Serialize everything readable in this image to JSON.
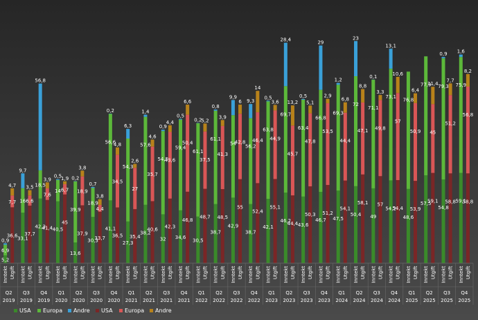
{
  "chart_data": {
    "type": "bar",
    "stacked": true,
    "title": "",
    "xlabel": "",
    "ylabel": "",
    "ylim": [
      0,
      170
    ],
    "grid": false,
    "legend_position": "bottom",
    "quarters": [
      {
        "q": "Q2",
        "y": "2019"
      },
      {
        "q": "Q3",
        "y": "2019"
      },
      {
        "q": "Q4",
        "y": "2019"
      },
      {
        "q": "Q1",
        "y": "2020"
      },
      {
        "q": "Q2",
        "y": "2020"
      },
      {
        "q": "Q3",
        "y": "2020"
      },
      {
        "q": "Q4",
        "y": "2020"
      },
      {
        "q": "Q1",
        "y": "2021"
      },
      {
        "q": "Q2",
        "y": "2021"
      },
      {
        "q": "Q3",
        "y": "2021"
      },
      {
        "q": "Q4",
        "y": "2021"
      },
      {
        "q": "Q1",
        "y": "2022"
      },
      {
        "q": "Q2",
        "y": "2022"
      },
      {
        "q": "Q3",
        "y": "2022"
      },
      {
        "q": "Q4",
        "y": "2022"
      },
      {
        "q": "Q1",
        "y": "2023"
      },
      {
        "q": "Q2",
        "y": "2023"
      },
      {
        "q": "Q3",
        "y": "2023"
      },
      {
        "q": "Q4",
        "y": "2023"
      },
      {
        "q": "Q1",
        "y": "2024"
      },
      {
        "q": "Q2",
        "y": "2024"
      },
      {
        "q": "Q3",
        "y": "2024"
      },
      {
        "q": "Q4",
        "y": "2024"
      },
      {
        "q": "Q1",
        "y": "2025"
      },
      {
        "q": "Q2",
        "y": "2025"
      },
      {
        "q": "Q3",
        "y": "2025"
      },
      {
        "q": "Q4",
        "y": "2025"
      }
    ],
    "sub_categories": [
      "Inntekt",
      "Utgift"
    ],
    "income_series": [
      {
        "name": "USA",
        "color": "#3a8a2a",
        "values": [
          5.2,
          33.1,
          42.3,
          40.5,
          13.6,
          30.3,
          41.1,
          27.3,
          38.2,
          32,
          34.6,
          30.5,
          38.7,
          42.9,
          38.7,
          42.1,
          46.2,
          43.6,
          46.7,
          47.5,
          50.4,
          49,
          54.2,
          48.6,
          57.5,
          54.8,
          59.1
        ]
      },
      {
        "name": "Europa",
        "color": "#5cb83a",
        "values": [
          6.9,
          16,
          18.5,
          14,
          39.9,
          18.9,
          56.6,
          54.3,
          57.6,
          54.5,
          59.4,
          61.1,
          61.1,
          54,
          56.2,
          63.8,
          69.7,
          63.4,
          66.8,
          69.3,
          72,
          71.1,
          73.1,
          76.8,
          77.9,
          79.3,
          75.9
        ]
      },
      {
        "name": "Andre",
        "color": "#3aa0d8",
        "values": [
          0.9,
          9.7,
          56.8,
          0.5,
          0.2,
          0.7,
          0.2,
          6.3,
          1.4,
          0.9,
          0.5,
          0.2,
          0.8,
          9.9,
          9.3,
          0.5,
          28.4,
          0.5,
          29,
          1.2,
          23,
          0.1,
          13.1,
          0,
          0,
          0.9,
          1.6
        ]
      }
    ],
    "expense_series": [
      {
        "name": "USA",
        "color": "#7a2626",
        "values": [
          36.6,
          37.7,
          41.4,
          45,
          37.9,
          33.7,
          36.5,
          35.4,
          40.6,
          42.3,
          46.8,
          48.7,
          48.5,
          55,
          52.4,
          55.1,
          44.4,
          50.3,
          51.2,
          54.1,
          58.1,
          57,
          54.4,
          53.9,
          59.1,
          58.8,
          58.8
        ]
      },
      {
        "name": "Europa",
        "color": "#d95656",
        "values": [
          7.7,
          6.6,
          7.6,
          6.7,
          18.9,
          4.4,
          34.5,
          27,
          35.7,
          43.6,
          50.4,
          37.5,
          41.3,
          42.8,
          46.4,
          44.9,
          45.7,
          47.8,
          53.5,
          44.4,
          47.1,
          49.8,
          57,
          50.9,
          45,
          51.2,
          56.8
        ]
      },
      {
        "name": "Andre",
        "color": "#b8821a",
        "values": [
          4.7,
          3.5,
          3.9,
          1.9,
          3.8,
          3.8,
          4.8,
          2.6,
          4.6,
          4.4,
          6.6,
          5.2,
          3.9,
          6,
          14,
          3.6,
          13.2,
          5.1,
          2.9,
          6.8,
          8.8,
          3.3,
          10.6,
          6.4,
          11.4,
          7.7,
          8.2
        ]
      }
    ],
    "legend": [
      {
        "label": "USA",
        "color": "#3a8a2a"
      },
      {
        "label": "Europa",
        "color": "#5cb83a"
      },
      {
        "label": "Andre",
        "color": "#3aa0d8"
      },
      {
        "label": "USA",
        "color": "#7a2626"
      },
      {
        "label": "Europa",
        "color": "#d95656"
      },
      {
        "label": "Andre",
        "color": "#b8821a"
      }
    ]
  }
}
